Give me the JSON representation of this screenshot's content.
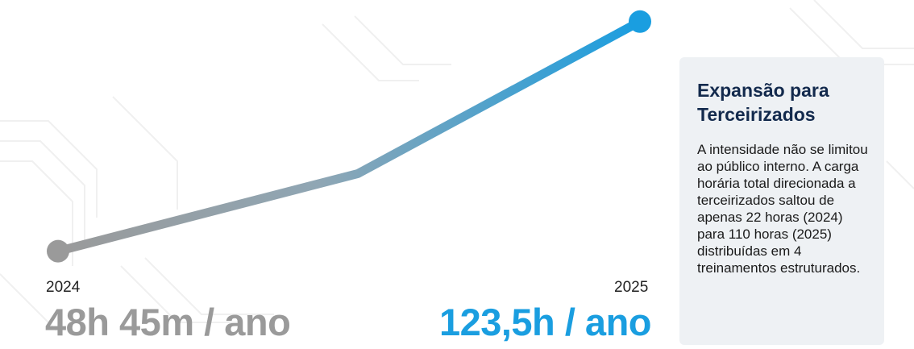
{
  "chart_data": {
    "type": "line",
    "x": [
      "2024",
      "",
      "2025"
    ],
    "series": [
      {
        "values": [
          48.75,
          74,
          123.5
        ]
      }
    ],
    "start_label": {
      "year": "2024",
      "value_text": "48h 45m / ano"
    },
    "end_label": {
      "year": "2025",
      "value_text": "123,5h / ano"
    },
    "colors": {
      "start": "#9a9a9a",
      "end": "#1a9ee0"
    },
    "ylim": [
      40,
      130
    ]
  },
  "card": {
    "title": "Expansão para Terceirizados",
    "body": "A intensidade não se limitou ao público interno. A carga horária total direcionada a terceirizados saltou de apenas 22 horas (2024) para 110 horas (2025) distribuídas em 4 treinamentos estruturados."
  }
}
